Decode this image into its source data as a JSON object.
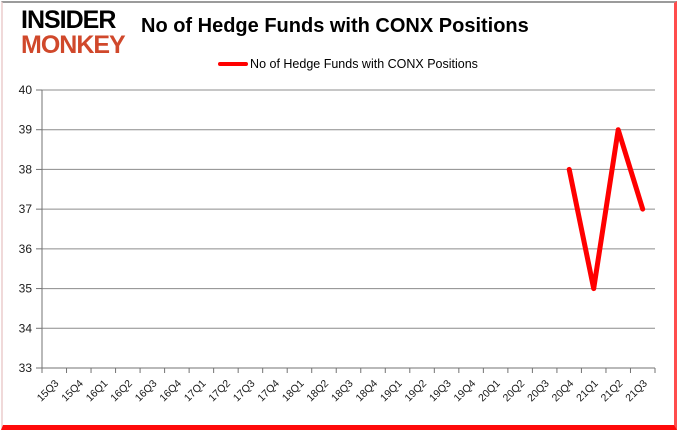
{
  "logo": {
    "line1": "INSIDER",
    "line2": "MONKEY",
    "monkey_color": "#d0482b"
  },
  "header": {
    "title": "No of Hedge Funds with CONX Positions"
  },
  "legend": {
    "label": "No of Hedge Funds with CONX Positions",
    "swatch_color": "#ff0000"
  },
  "chart_data": {
    "type": "line",
    "title": "No of Hedge Funds with CONX Positions",
    "categories": [
      "15Q3",
      "15Q4",
      "16Q1",
      "16Q2",
      "16Q3",
      "16Q4",
      "17Q1",
      "17Q2",
      "17Q3",
      "17Q4",
      "18Q1",
      "18Q2",
      "18Q3",
      "18Q4",
      "19Q1",
      "19Q2",
      "19Q3",
      "19Q4",
      "20Q1",
      "20Q2",
      "20Q3",
      "20Q4",
      "21Q1",
      "21Q2",
      "21Q3"
    ],
    "series": [
      {
        "name": "No of Hedge Funds with CONX Positions",
        "color": "#ff0000",
        "values": [
          null,
          null,
          null,
          null,
          null,
          null,
          null,
          null,
          null,
          null,
          null,
          null,
          null,
          null,
          null,
          null,
          null,
          null,
          null,
          null,
          null,
          38,
          35,
          39,
          37
        ]
      }
    ],
    "xlabel": "",
    "ylabel": "",
    "ylim": [
      33,
      40
    ],
    "ytick_step": 1,
    "grid": "horizontal",
    "grid_color": "#8c8c8c",
    "axis_color": "#737373",
    "tick_label_color": "#1a1a1a",
    "legend_position": "top-center"
  }
}
